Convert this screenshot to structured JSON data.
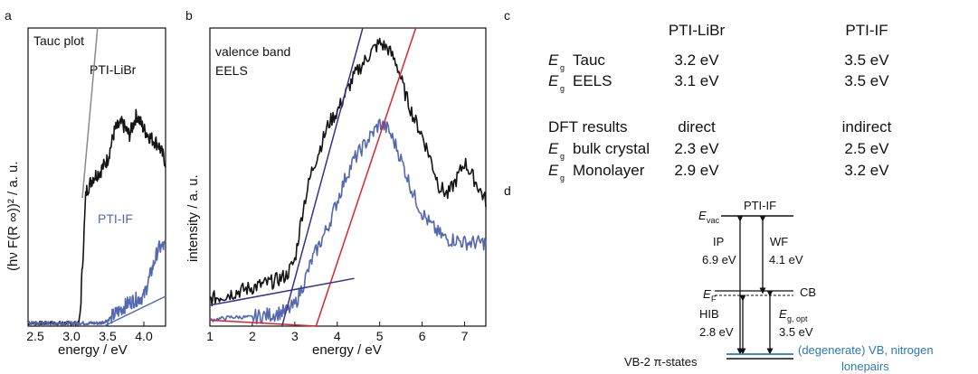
{
  "colors": {
    "black_trace": "#141414",
    "blue_trace": "#5468b0",
    "red_fit": "#d8262b",
    "navy_fit": "#37308e",
    "gray_fit": "#8a8a8a",
    "lone_pairs": "#2a79b8"
  },
  "panel_labels": {
    "a": "a",
    "b": "b",
    "c": "c",
    "d": "d"
  },
  "chart_data": [
    {
      "type": "line",
      "panel": "a",
      "title": "Tauc plot",
      "xlabel": "energy / eV",
      "ylabel": "(hν F(R ∞))² / a. u.",
      "xlim": [
        2.4,
        4.3
      ],
      "ylim": [
        0,
        1
      ],
      "ticks": [
        2.5,
        3.0,
        3.5,
        4.0
      ],
      "tick_labels": [
        "2.5",
        "3.0",
        "3.5",
        "4.0"
      ],
      "series": [
        {
          "name": "PTI-LiBr",
          "x": [
            2.4,
            3.0,
            3.1,
            3.12,
            3.2,
            3.3,
            3.4,
            3.5,
            3.6,
            3.7,
            3.8,
            3.9,
            4.0,
            4.1,
            4.2,
            4.3
          ],
          "values": [
            0.01,
            0.01,
            0.01,
            0.04,
            0.45,
            0.5,
            0.52,
            0.56,
            0.66,
            0.68,
            0.64,
            0.71,
            0.66,
            0.63,
            0.61,
            0.55
          ]
        },
        {
          "name": "PTI-IF",
          "x": [
            2.4,
            3.3,
            3.4,
            3.5,
            3.6,
            3.7,
            3.8,
            3.9,
            4.0,
            4.05,
            4.1,
            4.15,
            4.2,
            4.3
          ],
          "values": [
            0.01,
            0.01,
            0.01,
            0.02,
            0.04,
            0.06,
            0.08,
            0.09,
            0.1,
            0.14,
            0.18,
            0.22,
            0.26,
            0.27
          ]
        }
      ],
      "fit_lines": [
        {
          "x": [
            3.15,
            3.36
          ],
          "values": [
            0.43,
            1.0
          ]
        },
        {
          "x": [
            3.45,
            4.3
          ],
          "values": [
            0.0,
            0.1
          ]
        }
      ],
      "labels": {
        "top": "PTI-LiBr",
        "bottom": "PTI-IF"
      }
    },
    {
      "type": "line",
      "panel": "b",
      "title": "valence band EELS",
      "title_lines": [
        "valence band",
        "EELS"
      ],
      "xlabel": "energy / eV",
      "ylabel": "intensity  / a. u.",
      "xlim": [
        1,
        7.5
      ],
      "ylim": [
        0,
        1
      ],
      "ticks": [
        1,
        2,
        3,
        4,
        5,
        6,
        7
      ],
      "tick_labels": [
        "1",
        "2",
        "3",
        "4",
        "5",
        "6",
        "7"
      ],
      "series": [
        {
          "name": "black",
          "x": [
            1,
            1.5,
            2,
            2.5,
            2.8,
            3.0,
            3.2,
            3.4,
            3.6,
            3.8,
            4.0,
            4.2,
            4.4,
            4.6,
            4.8,
            5.0,
            5.2,
            5.4,
            5.6,
            5.8,
            6.0,
            6.2,
            6.4,
            6.6,
            6.8,
            7.0,
            7.2,
            7.5
          ],
          "values": [
            0.09,
            0.11,
            0.13,
            0.15,
            0.17,
            0.22,
            0.4,
            0.52,
            0.6,
            0.68,
            0.72,
            0.78,
            0.84,
            0.88,
            0.92,
            0.95,
            0.93,
            0.88,
            0.78,
            0.7,
            0.64,
            0.56,
            0.47,
            0.44,
            0.49,
            0.55,
            0.5,
            0.42
          ]
        },
        {
          "name": "blue",
          "x": [
            1,
            1.5,
            2,
            2.5,
            2.8,
            3.0,
            3.2,
            3.4,
            3.6,
            3.8,
            4.0,
            4.2,
            4.4,
            4.6,
            4.8,
            5.0,
            5.2,
            5.4,
            5.6,
            5.8,
            6.0,
            6.2,
            6.4,
            6.6,
            6.8,
            7.0,
            7.2,
            7.5
          ],
          "values": [
            0.02,
            0.03,
            0.03,
            0.04,
            0.05,
            0.07,
            0.14,
            0.22,
            0.28,
            0.34,
            0.42,
            0.5,
            0.56,
            0.6,
            0.64,
            0.68,
            0.66,
            0.6,
            0.52,
            0.44,
            0.38,
            0.34,
            0.31,
            0.29,
            0.29,
            0.28,
            0.28,
            0.28
          ]
        }
      ],
      "fit_lines": [
        {
          "color": "red",
          "x": [
            3.5,
            5.85
          ],
          "values": [
            0.0,
            1.0
          ]
        },
        {
          "color": "red",
          "x": [
            1,
            3.5
          ],
          "values": [
            0.02,
            0.0
          ]
        },
        {
          "color": "navy",
          "x": [
            2.7,
            4.6
          ],
          "values": [
            0.0,
            1.0
          ]
        },
        {
          "color": "navy",
          "x": [
            1,
            4.4
          ],
          "values": [
            0.07,
            0.16
          ]
        }
      ]
    }
  ],
  "table": {
    "headers": [
      "PTI-LiBr",
      "PTI-IF"
    ],
    "rows": [
      {
        "sym": "E",
        "sub": "g",
        "label": "Tauc",
        "v1": "3.2 eV",
        "v2": "3.5 eV"
      },
      {
        "sym": "E",
        "sub": "g",
        "label": "EELS",
        "v1": "3.1 eV",
        "v2": "3.5 eV"
      }
    ],
    "dft_label": "DFT results",
    "dft_headers": [
      "direct",
      "indirect"
    ],
    "dft_rows": [
      {
        "sym": "E",
        "sub": "g",
        "label": "bulk crystal",
        "v1": "2.3 eV",
        "v2": "2.5 eV"
      },
      {
        "sym": "E",
        "sub": "g",
        "label": "Monolayer",
        "v1": "2.9 eV",
        "v2": "3.2 eV"
      }
    ]
  },
  "diagram": {
    "title": "PTI-IF",
    "evac_sym": "E",
    "evac_sub": "vac",
    "ef_sym": "E",
    "ef_sub": "F",
    "ip_label": "IP",
    "ip_value": "6.9 eV",
    "wf_label": "WF",
    "wf_value": "4.1 eV",
    "cb_label": "CB",
    "hib_label": "HIB",
    "hib_value": "2.8 eV",
    "egopt_sym": "E",
    "egopt_sub": "g, opt",
    "egopt_value": "3.5 eV",
    "vb_label": "(degenerate) VB, nitrogen",
    "vb_label2": "lonepairs",
    "vb2_label": "VB-2 π-states"
  }
}
